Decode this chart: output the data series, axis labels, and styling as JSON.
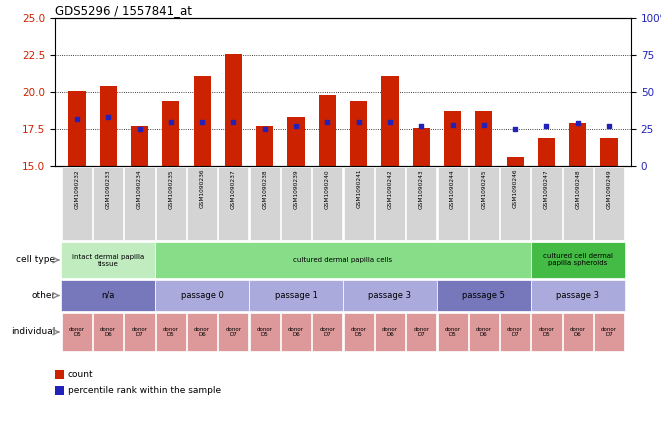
{
  "title": "GDS5296 / 1557841_at",
  "samples": [
    "GSM1090232",
    "GSM1090233",
    "GSM1090234",
    "GSM1090235",
    "GSM1090236",
    "GSM1090237",
    "GSM1090238",
    "GSM1090239",
    "GSM1090240",
    "GSM1090241",
    "GSM1090242",
    "GSM1090243",
    "GSM1090244",
    "GSM1090245",
    "GSM1090246",
    "GSM1090247",
    "GSM1090248",
    "GSM1090249"
  ],
  "count_values": [
    20.1,
    20.4,
    17.7,
    19.4,
    21.1,
    22.6,
    17.7,
    18.3,
    19.8,
    19.4,
    21.1,
    17.6,
    18.7,
    18.7,
    15.6,
    16.9,
    17.9,
    16.9
  ],
  "percentile_values": [
    32,
    33,
    25,
    30,
    30,
    30,
    25,
    27,
    30,
    30,
    30,
    27,
    28,
    28,
    25,
    27,
    29,
    27
  ],
  "ylim_left": [
    15,
    25
  ],
  "ylim_right": [
    0,
    100
  ],
  "yticks_left": [
    15,
    17.5,
    20,
    22.5,
    25
  ],
  "yticks_right": [
    0,
    25,
    50,
    75,
    100
  ],
  "bar_color": "#cc2200",
  "dot_color": "#2222bb",
  "cell_type_groups": [
    {
      "label": "intact dermal papilla\ntissue",
      "start": 0,
      "end": 3,
      "color": "#c0ecc0"
    },
    {
      "label": "cultured dermal papilla cells",
      "start": 3,
      "end": 15,
      "color": "#88dd88"
    },
    {
      "label": "cultured cell dermal\npapilla spheroids",
      "start": 15,
      "end": 18,
      "color": "#44bb44"
    }
  ],
  "other_groups": [
    {
      "label": "n/a",
      "start": 0,
      "end": 3,
      "color": "#7777bb"
    },
    {
      "label": "passage 0",
      "start": 3,
      "end": 6,
      "color": "#aaaadd"
    },
    {
      "label": "passage 1",
      "start": 6,
      "end": 9,
      "color": "#aaaadd"
    },
    {
      "label": "passage 3",
      "start": 9,
      "end": 12,
      "color": "#aaaadd"
    },
    {
      "label": "passage 5",
      "start": 12,
      "end": 15,
      "color": "#7777bb"
    },
    {
      "label": "passage 3",
      "start": 15,
      "end": 18,
      "color": "#aaaadd"
    }
  ],
  "donors": [
    "D5",
    "D6",
    "D7",
    "D5",
    "D6",
    "D7",
    "D5",
    "D6",
    "D7",
    "D5",
    "D6",
    "D7",
    "D5",
    "D6",
    "D7",
    "D5",
    "D6",
    "D7"
  ],
  "donor_color": "#dd9999",
  "row_labels": [
    "cell type",
    "other",
    "individual"
  ],
  "legend": [
    {
      "label": "count",
      "color": "#cc2200"
    },
    {
      "label": "percentile rank within the sample",
      "color": "#2222bb"
    }
  ]
}
